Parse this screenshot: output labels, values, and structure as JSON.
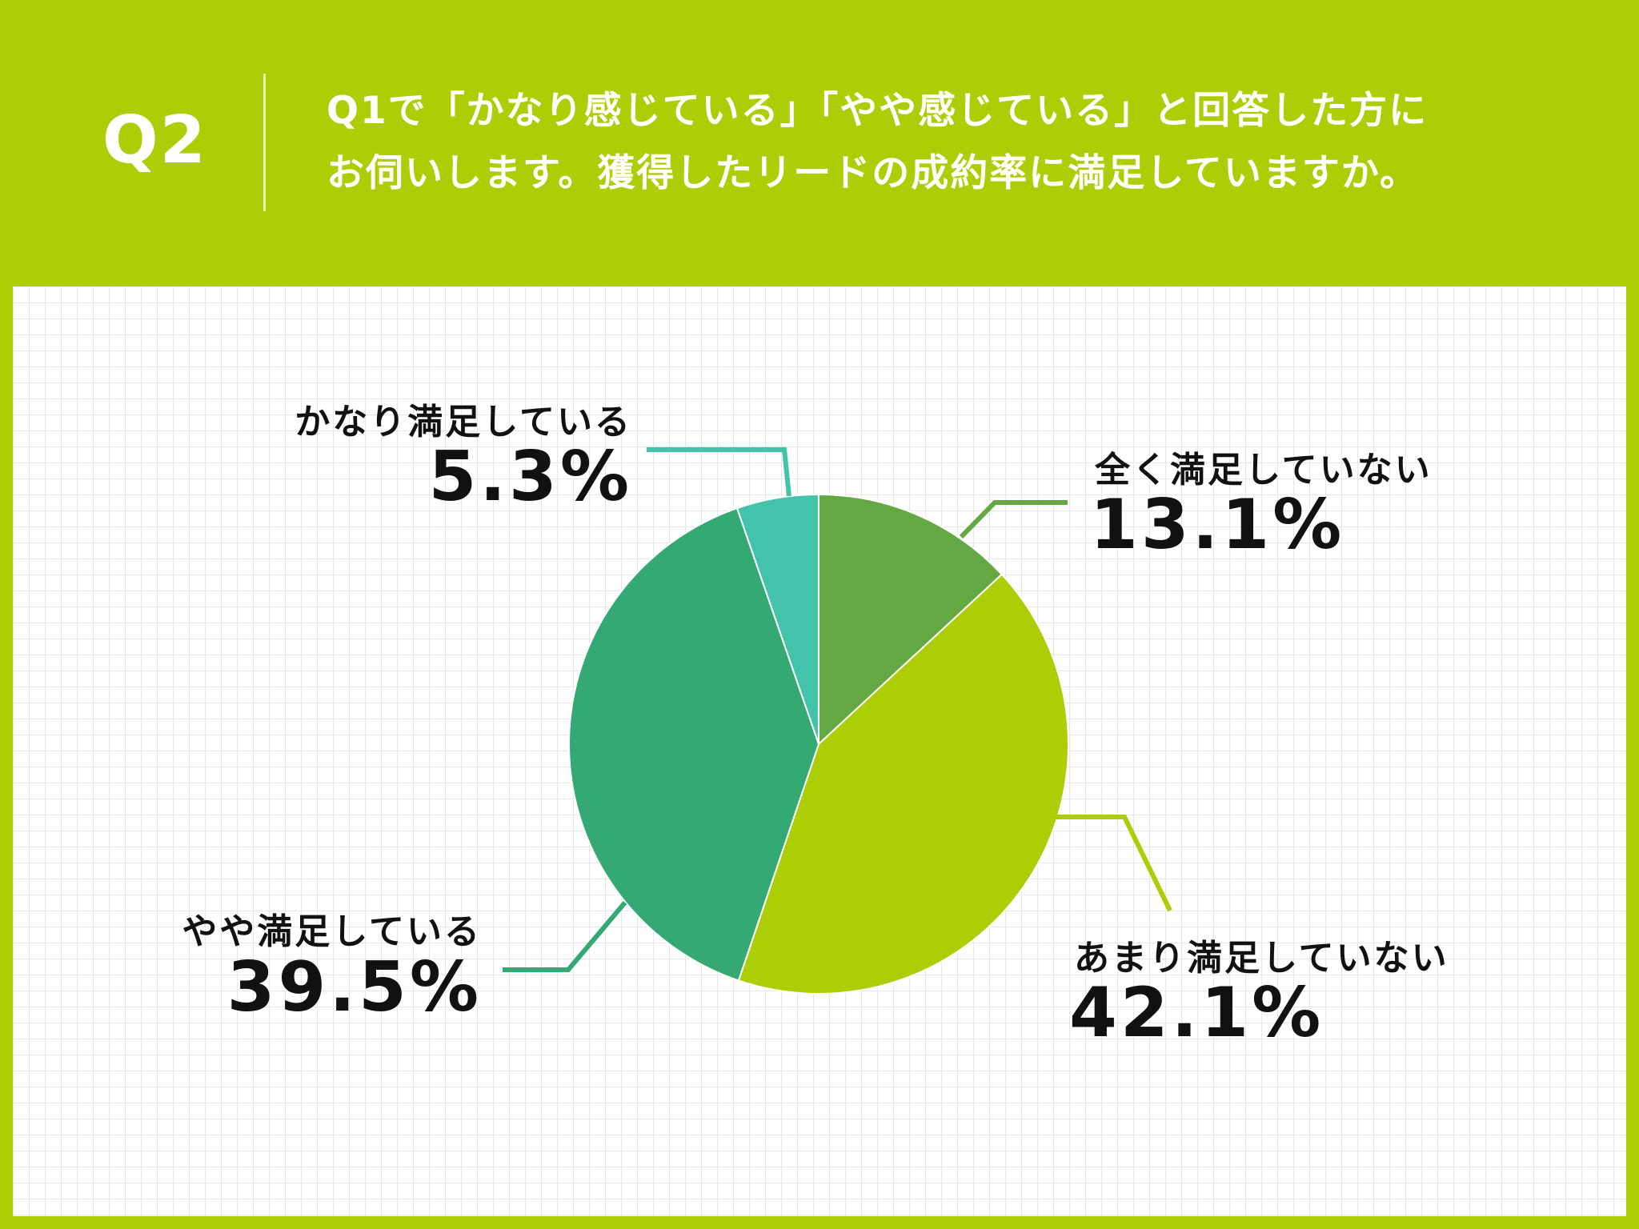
{
  "header": {
    "question_number": "Q2",
    "question_line1": "Q1で「かなり感じている」「やや感じている」と回答した方に",
    "question_line2": "お伺いします。獲得したリードの成約率に満足していますか。"
  },
  "colors": {
    "background": "#acce06",
    "slice_fully": "#43c3a9",
    "slice_somewhat": "#34a974",
    "slice_not_very": "#acce06",
    "slice_not_at_all": "#64a844"
  },
  "chart_data": {
    "type": "pie",
    "start": "top",
    "direction": "clockwise",
    "slices": [
      {
        "label": "全く満足していない",
        "value": 13.1,
        "value_label": "13.1%",
        "color": "#64a844"
      },
      {
        "label": "あまり満足していない",
        "value": 42.1,
        "value_label": "42.1%",
        "color": "#acce06"
      },
      {
        "label": "やや満足している",
        "value": 39.5,
        "value_label": "39.5%",
        "color": "#34a974"
      },
      {
        "label": "かなり満足している",
        "value": 5.3,
        "value_label": "5.3%",
        "color": "#43c3a9"
      }
    ]
  }
}
